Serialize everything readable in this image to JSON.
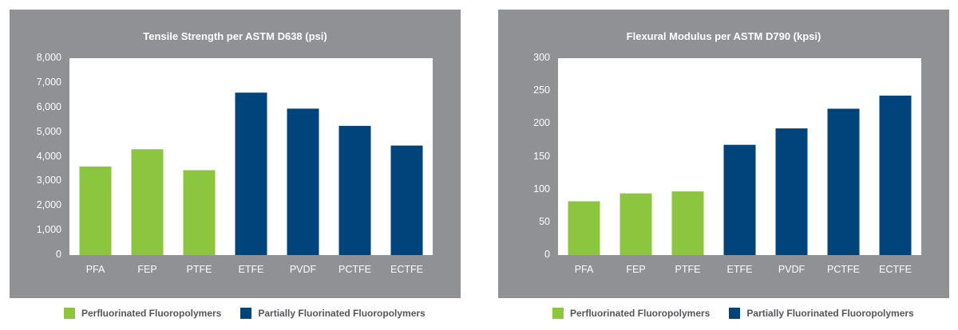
{
  "colors": {
    "panel": "#909194",
    "perfluorinated": "#8cc63f",
    "partially": "#00447c",
    "legend_text": "#555659"
  },
  "legend": {
    "perfluorinated": "Perfluorinated Fluoropolymers",
    "partially": "Partially Fluorinated Fluoropolymers"
  },
  "chart_data": [
    {
      "type": "bar",
      "title": "Tensile Strength per ASTM D638 (psi)",
      "xlabel": "",
      "ylabel": "",
      "categories": [
        "PFA",
        "FEP",
        "PTFE",
        "ETFE",
        "PVDF",
        "PCTFE",
        "ECTFE"
      ],
      "values": [
        3600,
        4300,
        3450,
        6600,
        5950,
        5250,
        4450
      ],
      "groups": [
        "perfluorinated",
        "perfluorinated",
        "perfluorinated",
        "partially",
        "partially",
        "partially",
        "partially"
      ],
      "ylim": [
        0,
        8000
      ],
      "yticks": [
        0,
        1000,
        2000,
        3000,
        4000,
        5000,
        6000,
        7000,
        8000
      ],
      "ytick_labels": [
        "0",
        "1,000",
        "2,000",
        "3,000",
        "4,000",
        "5,000",
        "6,000",
        "7,000",
        "8,000"
      ],
      "grid": false,
      "legend_position": "bottom"
    },
    {
      "type": "bar",
      "title": "Flexural Modulus per ASTM D790 (kpsi)",
      "xlabel": "",
      "ylabel": "",
      "categories": [
        "PFA",
        "FEP",
        "PTFE",
        "ETFE",
        "PVDF",
        "PCTFE",
        "ECTFE"
      ],
      "values": [
        82,
        94,
        97,
        168,
        193,
        223,
        243
      ],
      "groups": [
        "perfluorinated",
        "perfluorinated",
        "perfluorinated",
        "partially",
        "partially",
        "partially",
        "partially"
      ],
      "ylim": [
        0,
        300
      ],
      "yticks": [
        0,
        50,
        100,
        150,
        200,
        250,
        300
      ],
      "ytick_labels": [
        "0",
        "50",
        "100",
        "150",
        "200",
        "250",
        "300"
      ],
      "grid": false,
      "legend_position": "bottom"
    }
  ]
}
